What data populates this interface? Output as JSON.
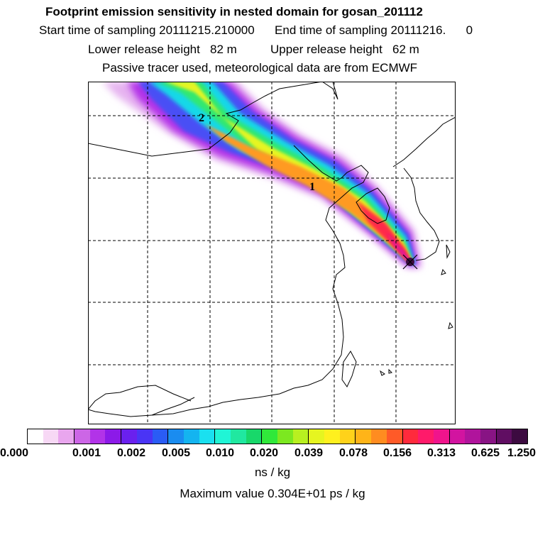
{
  "header": {
    "title": "Footprint emission sensitivity in nested domain for gosan_201112",
    "sampling": "Start time of sampling 20111215.210000      End time of sampling 20111216.      0",
    "release": "Lower release height   82 m          Upper release height   62 m",
    "tracer": "Passive tracer used, meteorological data are from ECMWF"
  },
  "map": {
    "labels": [
      "2",
      "1"
    ],
    "colors": {
      "land_outline": "#000000",
      "grid": "#000000"
    }
  },
  "legend": {
    "tick_labels": [
      "0.000",
      "0.001",
      "0.002",
      "0.005",
      "0.010",
      "0.020",
      "0.039",
      "0.078",
      "0.156",
      "0.313",
      "0.625",
      "1.250"
    ],
    "unit": "ns / kg",
    "colors": [
      "#ffffff",
      "#f7d8f5",
      "#e9a6ee",
      "#cc66e6",
      "#b233e8",
      "#8c1ae8",
      "#6a20ee",
      "#4a34f5",
      "#2a5cf5",
      "#1a8cf0",
      "#14b4f0",
      "#1ae0f0",
      "#20f5d6",
      "#20e8a0",
      "#18d86a",
      "#30e83a",
      "#7ce820",
      "#b8f020",
      "#e6f520",
      "#fff01e",
      "#ffd21a",
      "#ffb418",
      "#ff8c20",
      "#ff5a28",
      "#ff2a3c",
      "#ff1a6a",
      "#f0148c",
      "#d214a0",
      "#b0149c",
      "#881484",
      "#600e62",
      "#3c0a40"
    ]
  },
  "footer": {
    "max_value": "Maximum value  0.304E+01 ps / kg"
  }
}
